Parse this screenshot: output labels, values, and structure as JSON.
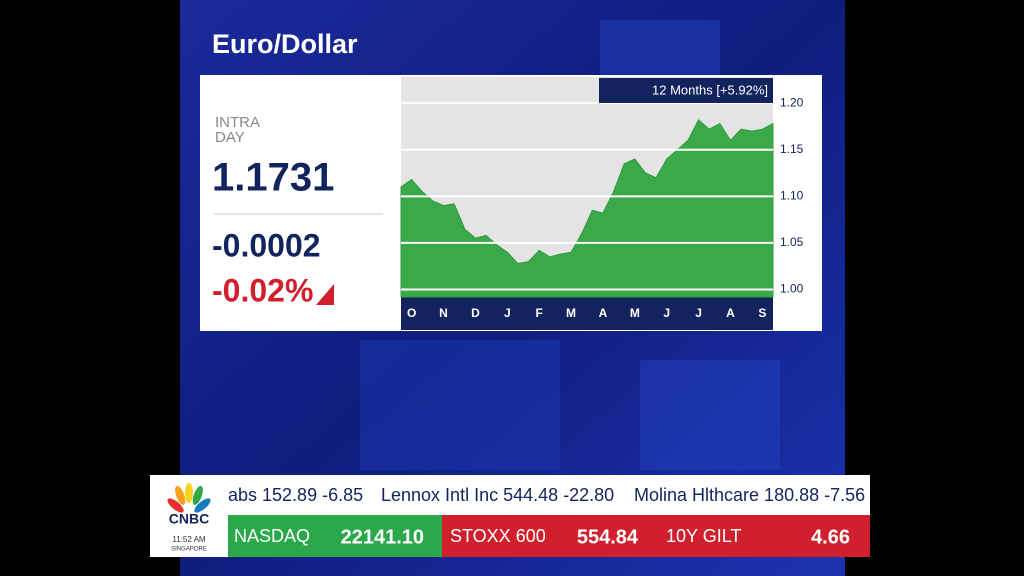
{
  "chart_data": {
    "type": "area",
    "title": "Euro/Dollar",
    "header": "12 Months [+5.92%]",
    "color": "#3aa94a",
    "categories": [
      null,
      "O",
      null,
      null,
      "N",
      null,
      null,
      "D",
      null,
      null,
      "J",
      null,
      null,
      "F",
      null,
      null,
      "M",
      null,
      null,
      "A",
      null,
      null,
      "M",
      null,
      null,
      "J",
      null,
      null,
      "J",
      null,
      null,
      "A",
      null,
      null,
      "S",
      null
    ],
    "values": [
      1.11,
      1.118,
      1.105,
      1.095,
      1.09,
      1.092,
      1.065,
      1.055,
      1.058,
      1.048,
      1.04,
      1.028,
      1.03,
      1.042,
      1.035,
      1.038,
      1.04,
      1.06,
      1.085,
      1.082,
      1.105,
      1.135,
      1.14,
      1.125,
      1.12,
      1.14,
      1.15,
      1.16,
      1.182,
      1.172,
      1.178,
      1.16,
      1.172,
      1.17,
      1.172,
      1.178
    ],
    "ylim": [
      0.992,
      1.228
    ],
    "yticks": [
      {
        "value": 1,
        "label": "1.00"
      },
      1.05,
      {
        "value": 1.1,
        "label": "1.10"
      },
      1.15,
      {
        "value": 1.2,
        "label": "1.20"
      }
    ],
    "grid": true
  },
  "quote": {
    "label_1": "INTRA",
    "label_2": "DAY",
    "price": "1.1731",
    "change": "-0.0002",
    "change_pct": "-0.02%"
  },
  "ticker": {
    "top": [
      "abs 152.89 -6.85",
      "Lennox Intl Inc 544.48 -22.80",
      "Molina Hlthcare 180.88 -7.56"
    ],
    "bottom": [
      {
        "name": "NASDAQ",
        "value": "22141.10"
      },
      {
        "name": "STOXX 600",
        "value": "554.84"
      },
      {
        "name": "10Y GILT",
        "value": "4.66"
      }
    ]
  },
  "logo": {
    "brand": "CNBC",
    "time": "11:52 AM",
    "city": "SINGAPORE"
  }
}
